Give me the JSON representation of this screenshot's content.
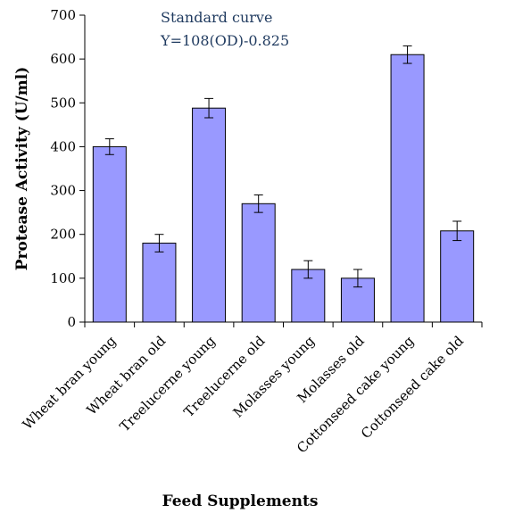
{
  "chart_data": {
    "type": "bar",
    "categories": [
      "Wheat bran young",
      "Wheat bran old",
      "Treelucerne young",
      "Treelucerne old",
      "Molasses young",
      "Molasses old",
      "Cottonseed cake young",
      "Cottonseed cake old"
    ],
    "values": [
      400,
      180,
      488,
      270,
      120,
      100,
      610,
      208
    ],
    "error": [
      18,
      20,
      22,
      20,
      20,
      20,
      20,
      22
    ],
    "xlabel": "Feed Supplements",
    "ylabel": "Protease Activity (U/ml)",
    "ylim": [
      0,
      700
    ],
    "yticks": [
      0,
      100,
      200,
      300,
      400,
      500,
      600,
      700
    ],
    "grid": false,
    "bar_color": "#9999ff",
    "annotations": [
      "Standard curve",
      "Y=108(OD)-0.825"
    ]
  }
}
